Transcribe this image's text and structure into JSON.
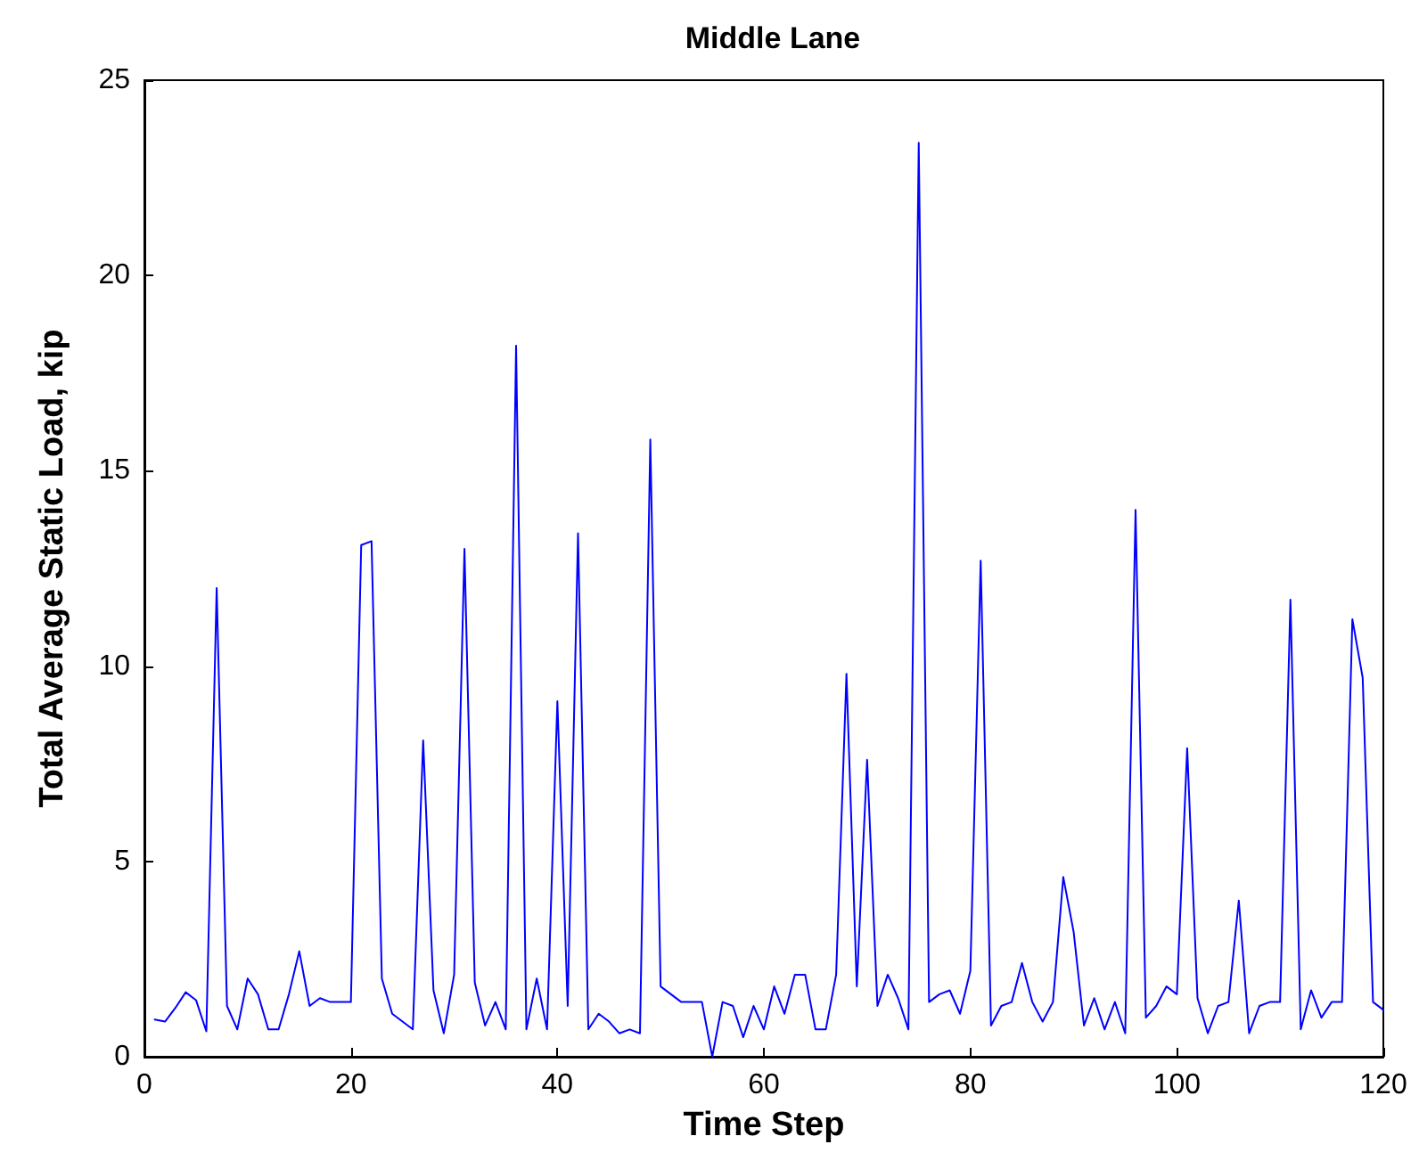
{
  "chart_data": {
    "type": "line",
    "title": "Middle Lane",
    "xlabel": "Time Step",
    "ylabel": "Total Average Static Load, kip",
    "x": [
      1,
      2,
      3,
      4,
      5,
      6,
      7,
      8,
      9,
      10,
      11,
      12,
      13,
      14,
      15,
      16,
      17,
      18,
      19,
      20,
      21,
      22,
      23,
      24,
      25,
      26,
      27,
      28,
      29,
      30,
      31,
      32,
      33,
      34,
      35,
      36,
      37,
      38,
      39,
      40,
      41,
      42,
      43,
      44,
      45,
      46,
      47,
      48,
      49,
      50,
      51,
      52,
      53,
      54,
      55,
      56,
      57,
      58,
      59,
      60,
      61,
      62,
      63,
      64,
      65,
      66,
      67,
      68,
      69,
      70,
      71,
      72,
      73,
      74,
      75,
      76,
      77,
      78,
      79,
      80,
      81,
      82,
      83,
      84,
      85,
      86,
      87,
      88,
      89,
      90,
      91,
      92,
      93,
      94,
      95,
      96,
      97,
      98,
      99,
      100,
      101,
      102,
      103,
      104,
      105,
      106,
      107,
      108,
      109,
      110,
      111,
      112,
      113,
      114,
      115,
      116,
      117,
      118,
      119,
      120
    ],
    "series": [
      {
        "color": "#0000ff",
        "values": [
          0.95,
          0.9,
          1.25,
          1.65,
          1.45,
          0.65,
          12.0,
          1.3,
          0.7,
          2.0,
          1.6,
          0.7,
          0.7,
          1.6,
          2.7,
          1.3,
          1.5,
          1.4,
          1.4,
          1.4,
          13.1,
          13.2,
          2.0,
          1.1,
          0.9,
          0.7,
          8.1,
          1.7,
          0.6,
          2.1,
          13.0,
          1.9,
          0.8,
          1.4,
          0.7,
          18.2,
          0.7,
          2.0,
          0.7,
          9.1,
          1.3,
          13.4,
          0.7,
          1.1,
          0.9,
          0.6,
          0.7,
          0.6,
          15.8,
          1.8,
          1.6,
          1.4,
          1.4,
          1.4,
          0.0,
          1.4,
          1.3,
          0.5,
          1.3,
          0.7,
          1.8,
          1.1,
          2.1,
          2.1,
          0.7,
          0.7,
          2.1,
          9.8,
          1.8,
          7.6,
          1.3,
          2.1,
          1.5,
          0.7,
          23.4,
          1.4,
          1.6,
          1.7,
          1.1,
          2.2,
          12.7,
          0.8,
          1.3,
          1.4,
          2.4,
          1.4,
          0.9,
          1.4,
          4.6,
          3.2,
          0.8,
          1.5,
          0.7,
          1.4,
          0.6,
          14.0,
          1.0,
          1.3,
          1.8,
          1.6,
          7.9,
          1.5,
          0.6,
          1.3,
          1.4,
          4.0,
          0.6,
          1.3,
          1.4,
          1.4,
          11.7,
          0.7,
          1.7,
          1.0,
          1.4,
          1.4,
          11.2,
          9.7,
          1.4,
          1.2
        ]
      }
    ],
    "xlim": [
      0,
      120
    ],
    "xticks": [
      0,
      20,
      40,
      60,
      80,
      100,
      120
    ],
    "ylim": [
      0,
      25
    ],
    "yticks": [
      0,
      5,
      10,
      15,
      20,
      25
    ],
    "grid": false,
    "marker": "none",
    "line_style": "solid"
  }
}
